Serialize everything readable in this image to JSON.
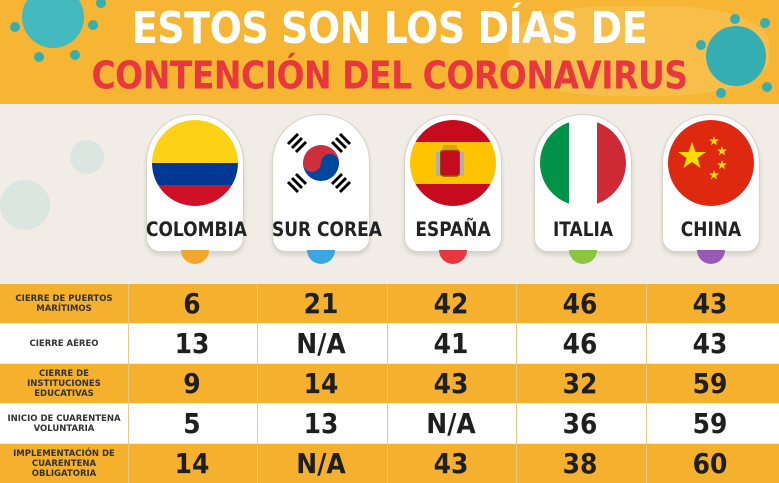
{
  "title_line1": "ESTOS SON LOS DÍAS DE",
  "title_line2": "CONTENCIÓN DEL CORONAVIRUS",
  "countries": [
    {
      "name": "COLOMBIA",
      "flag": "colombia-flag",
      "tip_color": "#f4a62a"
    },
    {
      "name": "SUR COREA",
      "flag": "south-korea-flag",
      "tip_color": "#3aa7e0"
    },
    {
      "name": "ESPAÑA",
      "flag": "spain-flag",
      "tip_color": "#e8373f"
    },
    {
      "name": "ITALIA",
      "flag": "italy-flag",
      "tip_color": "#8cc63f"
    },
    {
      "name": "CHINA",
      "flag": "china-flag",
      "tip_color": "#9b59b6"
    }
  ],
  "rows": [
    {
      "label": "CIERRE DE PUERTOS MARÍTIMOS",
      "values": [
        "6",
        "21",
        "42",
        "46",
        "43"
      ]
    },
    {
      "label": "CIERRE AÉREO",
      "values": [
        "13",
        "N/A",
        "41",
        "46",
        "43"
      ]
    },
    {
      "label": "CIERRE DE INSTITUCIONES EDUCATIVAS",
      "values": [
        "9",
        "14",
        "43",
        "32",
        "59"
      ]
    },
    {
      "label": "INICIO DE CUARENTENA VOLUNTARIA",
      "values": [
        "5",
        "13",
        "N/A",
        "36",
        "59"
      ]
    },
    {
      "label": "IMPLEMENTACIÓN DE CUARENTENA OBLIGATORIA",
      "values": [
        "14",
        "N/A",
        "43",
        "38",
        "60"
      ]
    }
  ],
  "colors": {
    "header": "#f6b532",
    "title_white": "#ffffff",
    "title_red": "#e8373f",
    "row_orange": "#f5b12e",
    "row_white": "#ffffff",
    "virus": "#43b9bd"
  }
}
